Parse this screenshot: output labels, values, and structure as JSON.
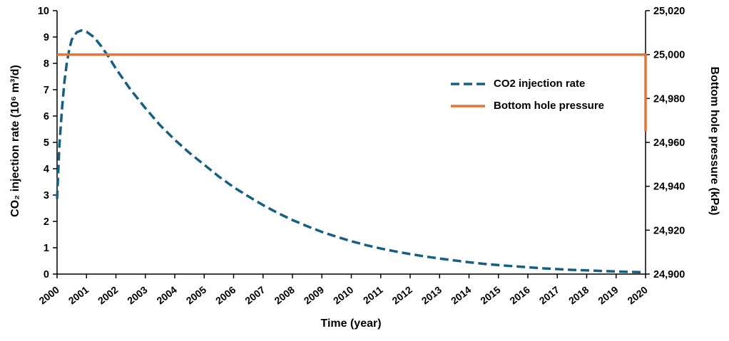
{
  "chart_data": {
    "type": "line",
    "title": "",
    "grid": false,
    "background": "#FFFFFF",
    "x_axis": {
      "label": "Time (year)",
      "min": 2000,
      "max": 2020,
      "tick_step": 1
    },
    "left_axis": {
      "label": "CO₂ injection rate (10⁶ m³/d)",
      "min": 0,
      "max": 10,
      "tick_step": 1
    },
    "right_axis": {
      "label": "Bottom hole pressure (kPa)",
      "min": 24900,
      "max": 25020,
      "tick_step": 20
    },
    "legend": {
      "position": "inside-right",
      "entries": [
        {
          "label": "CO2 injection rate",
          "color": "#156082",
          "dashed": true
        },
        {
          "label": "Bottom hole pressure",
          "color": "#E97132",
          "dashed": false
        }
      ]
    },
    "series": [
      {
        "name": "CO2 injection rate",
        "axis": "left",
        "color": "#156082",
        "style": "dashed",
        "points": [
          [
            2000,
            2.85
          ],
          [
            2000.08,
            4.9
          ],
          [
            2000.17,
            6.3
          ],
          [
            2000.25,
            7.3
          ],
          [
            2000.33,
            8.0
          ],
          [
            2000.42,
            8.55
          ],
          [
            2000.5,
            8.9
          ],
          [
            2000.67,
            9.18
          ],
          [
            2000.83,
            9.25
          ],
          [
            2001,
            9.2
          ],
          [
            2001.25,
            9.0
          ],
          [
            2001.5,
            8.65
          ],
          [
            2001.75,
            8.25
          ],
          [
            2002,
            7.8
          ],
          [
            2002.25,
            7.4
          ],
          [
            2002.5,
            7.0
          ],
          [
            2003,
            6.3
          ],
          [
            2003.5,
            5.65
          ],
          [
            2004,
            5.1
          ],
          [
            2004.5,
            4.6
          ],
          [
            2005,
            4.15
          ],
          [
            2005.5,
            3.7
          ],
          [
            2006,
            3.3
          ],
          [
            2006.5,
            2.95
          ],
          [
            2007,
            2.62
          ],
          [
            2007.5,
            2.32
          ],
          [
            2008,
            2.05
          ],
          [
            2008.5,
            1.82
          ],
          [
            2009,
            1.6
          ],
          [
            2009.5,
            1.42
          ],
          [
            2010,
            1.25
          ],
          [
            2010.5,
            1.1
          ],
          [
            2011,
            0.97
          ],
          [
            2011.5,
            0.86
          ],
          [
            2012,
            0.76
          ],
          [
            2012.5,
            0.67
          ],
          [
            2013,
            0.59
          ],
          [
            2013.5,
            0.52
          ],
          [
            2014,
            0.45
          ],
          [
            2014.5,
            0.39
          ],
          [
            2015,
            0.34
          ],
          [
            2015.5,
            0.3
          ],
          [
            2016,
            0.26
          ],
          [
            2016.5,
            0.22
          ],
          [
            2017,
            0.19
          ],
          [
            2017.5,
            0.16
          ],
          [
            2018,
            0.14
          ],
          [
            2018.5,
            0.12
          ],
          [
            2019,
            0.1
          ],
          [
            2019.5,
            0.08
          ],
          [
            2020,
            0.07
          ]
        ]
      },
      {
        "name": "Bottom hole pressure",
        "axis": "right",
        "color": "#E97132",
        "style": "solid",
        "points": [
          [
            2000,
            25000
          ],
          [
            2020,
            25000
          ],
          [
            2020,
            24965
          ]
        ]
      }
    ]
  }
}
